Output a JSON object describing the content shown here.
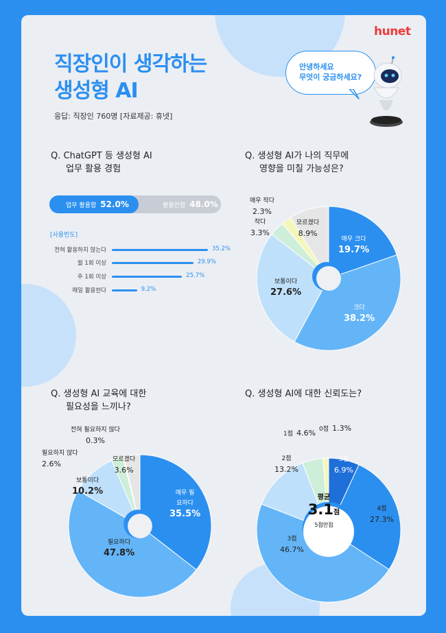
{
  "brand": "hunet",
  "title_lines": [
    "직장인이 생각하는",
    "생성형 AI"
  ],
  "source": "응답: 직장인 760명 [자료제공: 휴넷]",
  "bubble_lines": [
    "안녕하세요",
    "무엇이 궁금하세요?"
  ],
  "colors": {
    "blue_dark": "#1e6fd8",
    "blue": "#2b8ff0",
    "blue_mid": "#64b5f8",
    "blue_light": "#bfe0fb",
    "mint": "#cdeed9",
    "yellow": "#f4f6bd",
    "gray": "#e6e6e6"
  },
  "q1": {
    "title_lines": [
      "Q. ChatGPT 등 생성형 AI",
      "업무 활용 경험"
    ],
    "used_label": "업무 활용함",
    "used_value": "52.0%",
    "not_used_label": "활용안함",
    "not_used_value": "48.0%",
    "freq_title": "[사용빈도]"
  },
  "q2": {
    "title_lines": [
      "Q. 생성형 AI가 나의 직무에",
      "영향을 미칠 가능성은?"
    ]
  },
  "q3": {
    "title_lines": [
      "Q. 생성형 AI 교육에 대한",
      "필요성을 느끼나?"
    ]
  },
  "q4": {
    "title_lines": [
      "Q. 생성형 AI에 대한 신뢰도는?"
    ],
    "avg_title": "평균",
    "avg_value": "3.1",
    "avg_unit": "점",
    "avg_sub": "5점만점"
  },
  "chart_data": [
    {
      "type": "bar",
      "categories": [
        "업무 활용함",
        "활용안함"
      ],
      "values": [
        52.0,
        48.0
      ]
    },
    {
      "type": "bar",
      "title": "[사용빈도]",
      "categories": [
        "전혀 활용하지 않는다",
        "월 1회 이상",
        "주 1회 이상",
        "매일 활용한다"
      ],
      "values": [
        35.2,
        29.9,
        25.7,
        9.2
      ],
      "labels": [
        "35.2%",
        "29.9%",
        "25.7%",
        "9.2%"
      ]
    },
    {
      "type": "pie",
      "categories": [
        "매우 크다",
        "크다",
        "보통이다",
        "작다",
        "매우 작다",
        "모르겠다"
      ],
      "values": [
        19.7,
        38.2,
        27.6,
        3.3,
        2.3,
        8.9
      ],
      "labels": [
        "19.7%",
        "38.2%",
        "27.6%",
        "3.3%",
        "2.3%",
        "8.9%"
      ]
    },
    {
      "type": "pie",
      "categories": [
        "매우 필요하다",
        "필요하다",
        "보통이다",
        "필요하지 않다",
        "전혀 필요하지 않다",
        "모르겠다"
      ],
      "values": [
        35.5,
        47.8,
        10.2,
        2.6,
        0.3,
        3.6
      ],
      "labels": [
        "35.5%",
        "47.8%",
        "10.2%",
        "2.6%",
        "0.3%",
        "3.6%"
      ]
    },
    {
      "type": "pie",
      "categories": [
        "5점",
        "4점",
        "3점",
        "2점",
        "1점",
        "0점"
      ],
      "values": [
        6.9,
        27.3,
        46.7,
        13.2,
        4.6,
        1.3
      ],
      "labels": [
        "6.9%",
        "27.3%",
        "46.7%",
        "13.2%",
        "4.6%",
        "1.3%"
      ]
    }
  ]
}
